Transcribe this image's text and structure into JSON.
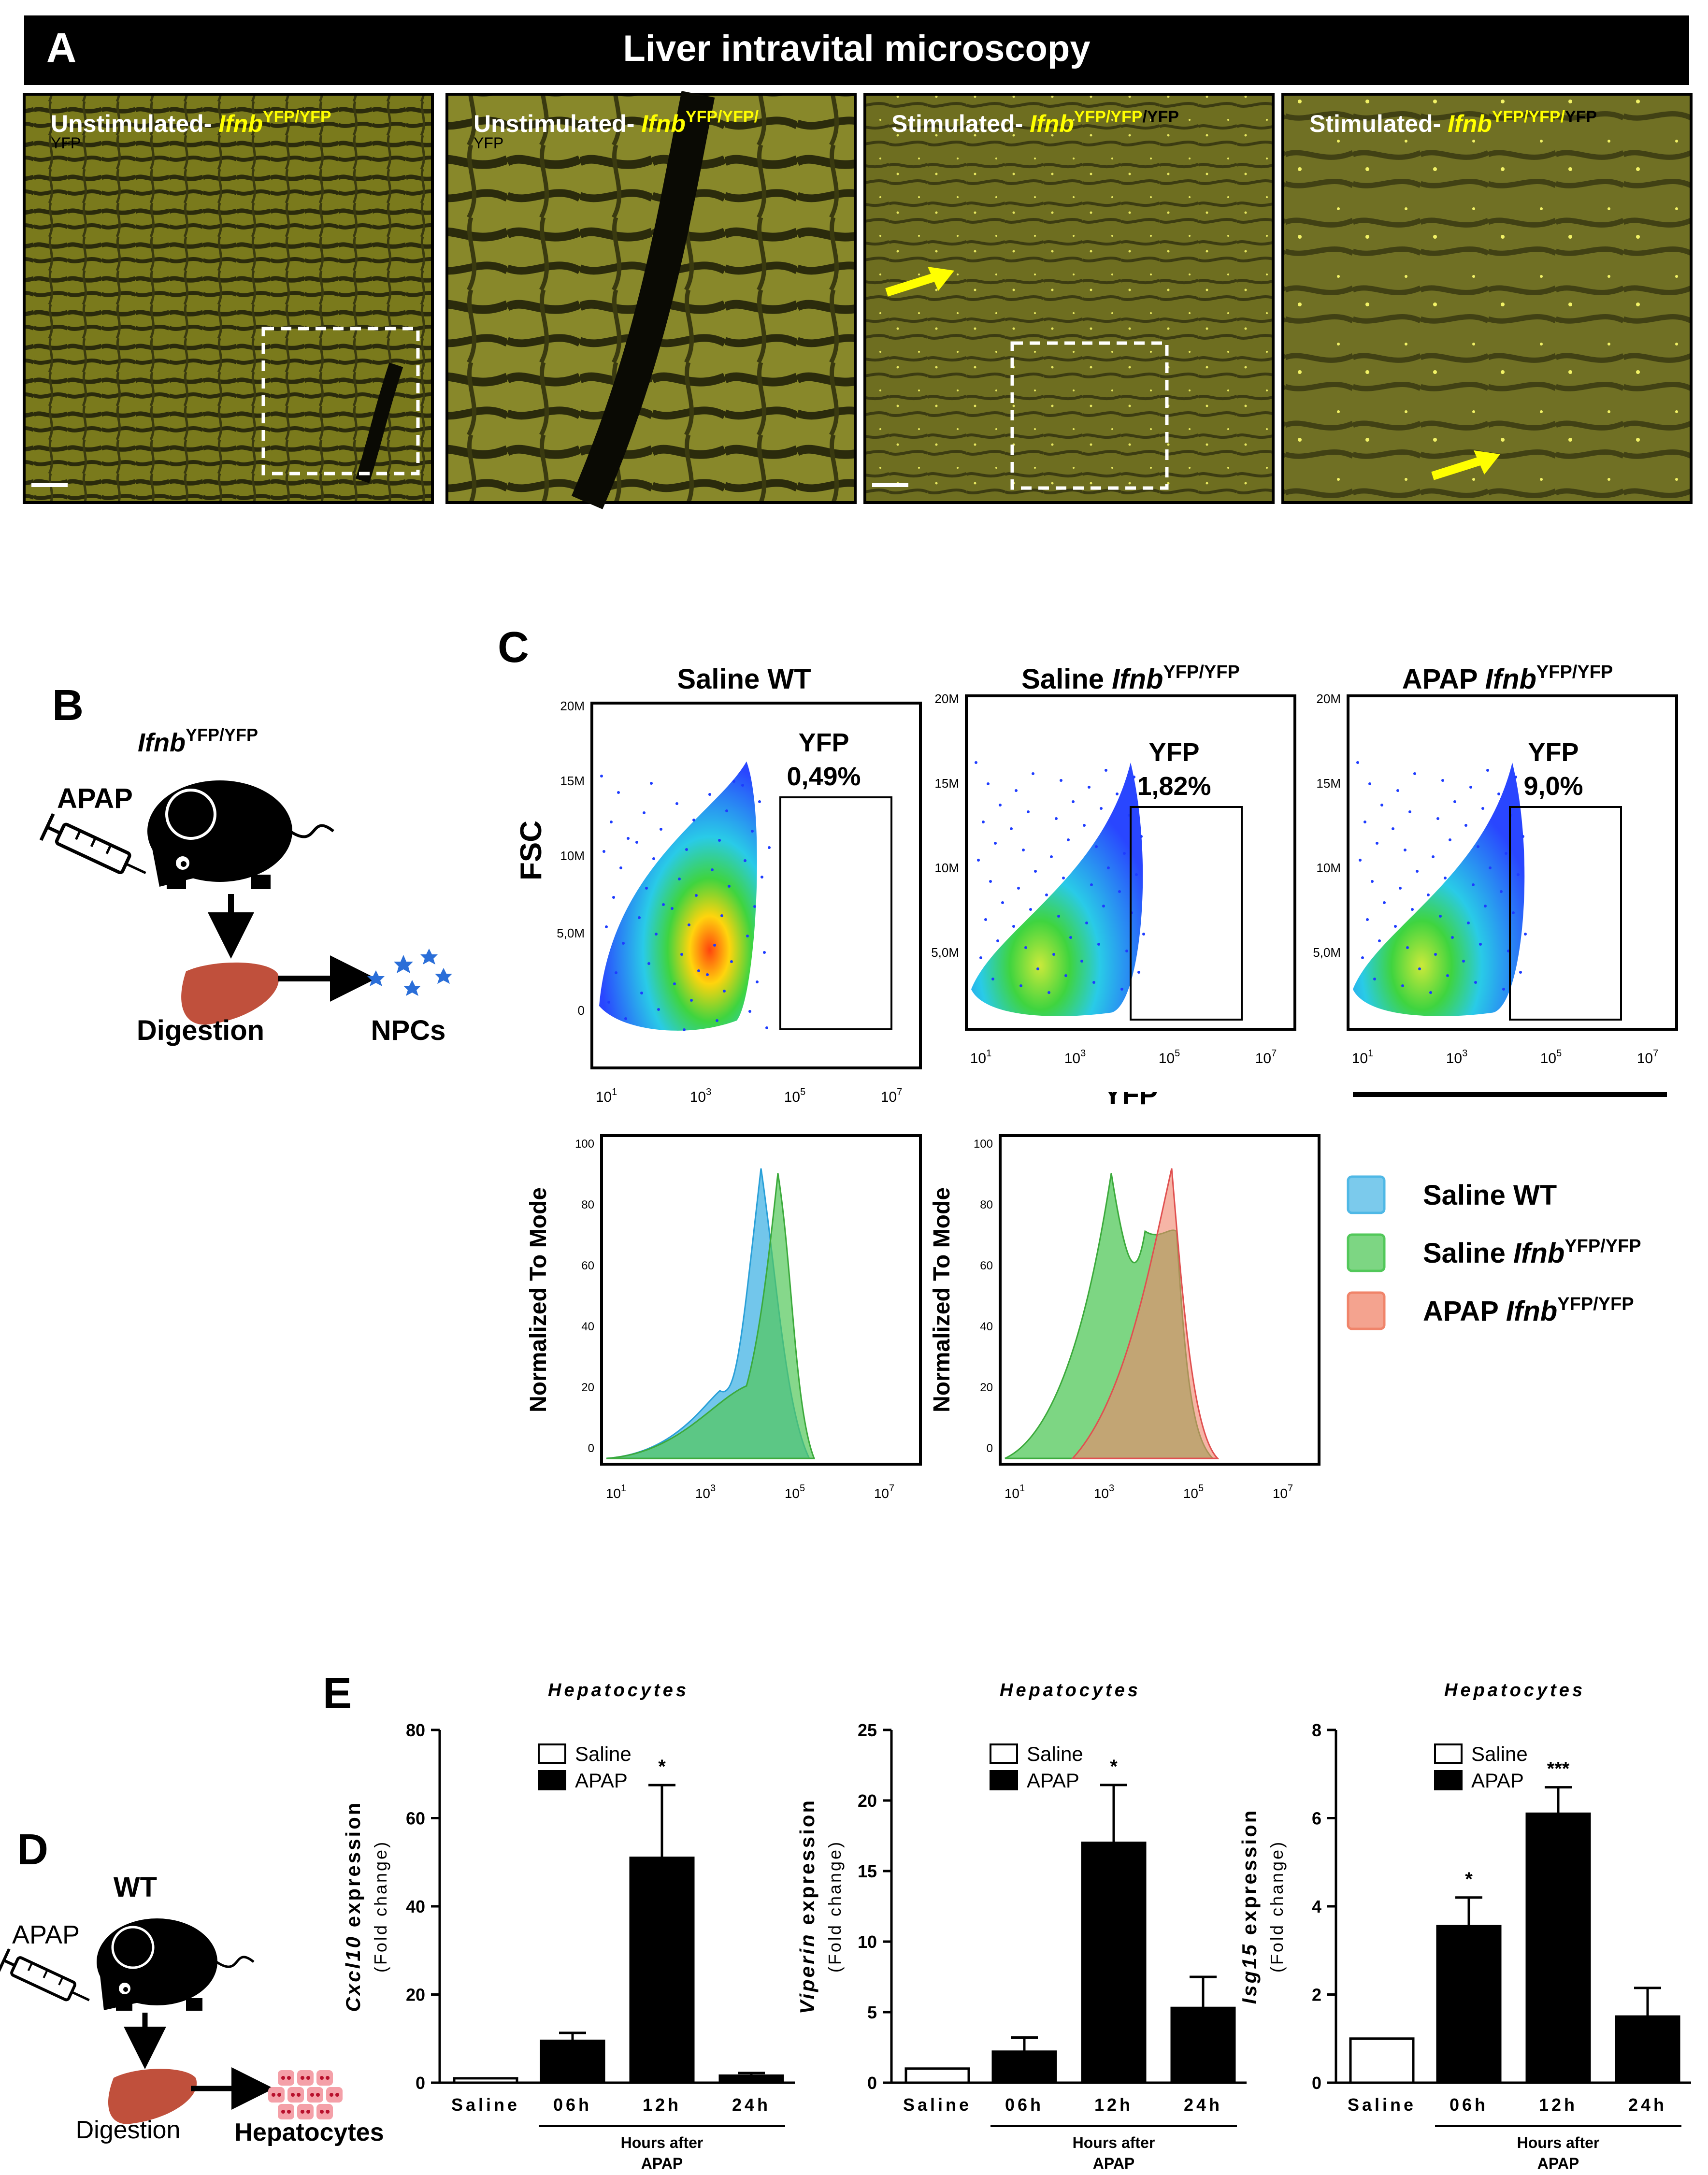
{
  "figure": {
    "panelA": {
      "letter": "A",
      "banner": "Liver intravital microscopy",
      "tiles": [
        {
          "prefix": "Unstimulated- ",
          "gene": "Ifnb",
          "sup": "YFP/YFP",
          "tail": "",
          "sub": "YFP",
          "dashed_box": true,
          "arrow": false
        },
        {
          "prefix": "Unstimulated- ",
          "gene": "Ifnb",
          "sup": "YFP/YFP/",
          "tail": "",
          "sub": "YFP",
          "dashed_box": false,
          "arrow": false
        },
        {
          "prefix": "Stimulated- ",
          "gene": "Ifnb",
          "sup": "YFP/YFP",
          "tail": "/YFP",
          "sub": "",
          "dashed_box": true,
          "arrow": true
        },
        {
          "prefix": "Stimulated- ",
          "gene": "Ifnb",
          "sup": "YFP/YFP/",
          "tail": "YFP",
          "sub": "",
          "dashed_box": false,
          "arrow": true
        }
      ]
    },
    "panelB": {
      "letter": "B",
      "genotype_gene": "Ifnb",
      "genotype_sup": "YFP/YFP",
      "treatment": "APAP",
      "step1": "Digestion",
      "step2": "NPCs"
    },
    "panelC": {
      "letter": "C",
      "y_label": "FSC",
      "x_label": "YFP",
      "scatter_plots": [
        {
          "title": "Saline WT",
          "title_gene": "",
          "title_sup": "",
          "gate_label": "YFP",
          "gate_percent": "0,49%",
          "y_ticks": [
            "20M",
            "15M",
            "10M",
            "5,0M",
            "0"
          ],
          "x_ticks": [
            "10",
            "10",
            "10",
            "10"
          ],
          "x_exps": [
            "1",
            "3",
            "5",
            "7"
          ]
        },
        {
          "title": "Saline ",
          "title_gene": "Ifnb",
          "title_sup": "YFP/YFP",
          "gate_label": "YFP",
          "gate_percent": "1,82%",
          "y_ticks": [
            "20M",
            "15M",
            "10M",
            "5,0M"
          ],
          "x_ticks": [
            "10",
            "10",
            "10",
            "10"
          ],
          "x_exps": [
            "1",
            "3",
            "5",
            "7"
          ]
        },
        {
          "title": "APAP ",
          "title_gene": "Ifnb",
          "title_sup": "YFP/YFP",
          "gate_label": "YFP",
          "gate_percent": "9,0%",
          "y_ticks": [
            "20M",
            "15M",
            "10M",
            "5,0M"
          ],
          "x_ticks": [
            "10",
            "10",
            "10",
            "10"
          ],
          "x_exps": [
            "1",
            "3",
            "5",
            "7"
          ]
        }
      ],
      "histograms": {
        "y_label": "Normalized To Mode",
        "y_ticks": [
          "100",
          "80",
          "60",
          "40",
          "20",
          "0"
        ],
        "x_exps": [
          "1",
          "3",
          "5",
          "7"
        ],
        "legend": [
          {
            "label": "Saline WT",
            "gene": "",
            "sup": "",
            "color": "#4fb8e6"
          },
          {
            "label": "Saline ",
            "gene": "Ifnb",
            "sup": "YFP/YFP",
            "color": "#52c85a"
          },
          {
            "label": "APAP ",
            "gene": "Ifnb",
            "sup": "YFP/YFP",
            "color": "#f0846a"
          }
        ]
      }
    },
    "panelD": {
      "letter": "D",
      "genotype": "WT",
      "treatment": "APAP",
      "step1": "Digestion",
      "step2": "Hepatocytes"
    },
    "panelE": {
      "letter": "E"
    }
  },
  "chart_data": [
    {
      "type": "bar",
      "title": "Hepatocytes",
      "gene": "Cxcl10",
      "ylabel_suffix": " expression",
      "ylabel_sub": "(Fold change)",
      "categories": [
        "Saline",
        "06h",
        "12h",
        "24h"
      ],
      "group_label": [
        "Hours after",
        "APAP"
      ],
      "series": [
        {
          "name": "Saline",
          "values": [
            1,
            null,
            null,
            null
          ],
          "errors": [
            0,
            null,
            null,
            null
          ]
        },
        {
          "name": "APAP",
          "values": [
            null,
            9.5,
            51,
            1.6
          ],
          "errors": [
            null,
            1.8,
            16.5,
            0.6
          ]
        }
      ],
      "significance": [
        "",
        "",
        "*",
        ""
      ],
      "ylim": [
        0,
        80
      ],
      "yticks": [
        0,
        20,
        40,
        60,
        80
      ]
    },
    {
      "type": "bar",
      "title": "Hepatocytes",
      "gene": "Viperin",
      "ylabel_suffix": " expression",
      "ylabel_sub": "(Fold change)",
      "categories": [
        "Saline",
        "06h",
        "12h",
        "24h"
      ],
      "group_label": [
        "Hours after",
        "APAP"
      ],
      "series": [
        {
          "name": "Saline",
          "values": [
            1,
            null,
            null,
            null
          ],
          "errors": [
            0,
            null,
            null,
            null
          ]
        },
        {
          "name": "APAP",
          "values": [
            null,
            2.2,
            17,
            5.3
          ],
          "errors": [
            null,
            1.0,
            4.1,
            2.2
          ]
        }
      ],
      "significance": [
        "",
        "",
        "*",
        ""
      ],
      "ylim": [
        0,
        25
      ],
      "yticks": [
        0,
        5,
        10,
        15,
        20,
        25
      ]
    },
    {
      "type": "bar",
      "title": "Hepatocytes",
      "gene": "Isg15",
      "ylabel_suffix": " expression",
      "ylabel_sub": "(Fold change)",
      "categories": [
        "Saline",
        "06h",
        "12h",
        "24h"
      ],
      "group_label": [
        "Hours after",
        "APAP"
      ],
      "series": [
        {
          "name": "Saline",
          "values": [
            1,
            null,
            null,
            null
          ],
          "errors": [
            0,
            null,
            null,
            null
          ]
        },
        {
          "name": "APAP",
          "values": [
            null,
            3.55,
            6.1,
            1.5
          ],
          "errors": [
            null,
            0.65,
            0.6,
            0.65
          ]
        }
      ],
      "significance": [
        "",
        "*",
        "***",
        ""
      ],
      "ylim": [
        0,
        8
      ],
      "yticks": [
        0,
        2,
        4,
        6,
        8
      ]
    }
  ]
}
